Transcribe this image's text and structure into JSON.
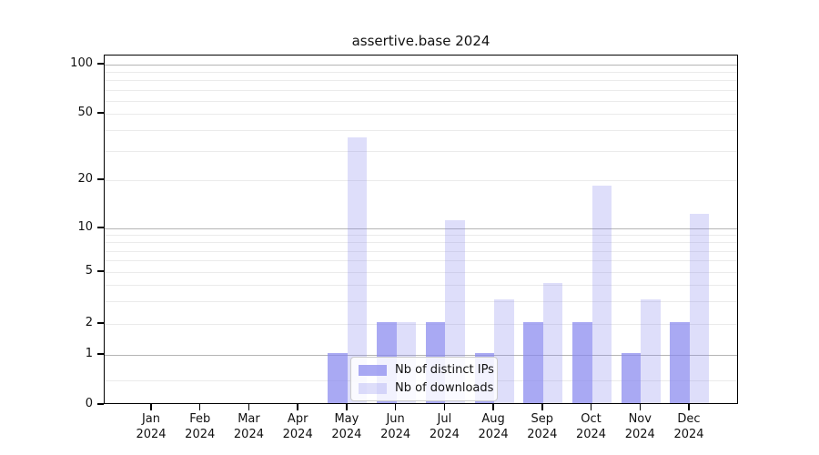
{
  "chart_data": {
    "type": "bar",
    "title": "assertive.base 2024",
    "categories": [
      "Jan",
      "Feb",
      "Mar",
      "Apr",
      "May",
      "Jun",
      "Jul",
      "Aug",
      "Sep",
      "Oct",
      "Nov",
      "Dec"
    ],
    "year_label": "2024",
    "series": [
      {
        "name": "Nb of distinct IPs",
        "color": "rgba(136,136,238,0.72)",
        "values": [
          0,
          0,
          0,
          0,
          1,
          2,
          2,
          1,
          2,
          2,
          1,
          2
        ]
      },
      {
        "name": "Nb of downloads",
        "color": "rgba(136,136,238,0.28)",
        "values": [
          0,
          0,
          0,
          0,
          35,
          2,
          11,
          3,
          4,
          18,
          3,
          12
        ]
      }
    ],
    "base_color": "#8888ee",
    "yscale": "symlog",
    "yticks": [
      0,
      1,
      2,
      5,
      10,
      20,
      50,
      100
    ],
    "ylim": [
      0,
      100
    ],
    "xlabel": "",
    "ylabel": "",
    "grid": true,
    "legend_position": "lower center"
  }
}
